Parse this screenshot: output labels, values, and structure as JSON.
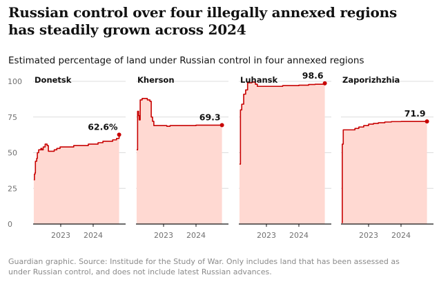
{
  "title": "Russian control over four illegally annexed regions has steadily grown across 2024",
  "subtitle": "Estimated percentage of land under Russian control in four annexed regions",
  "footnote": "Guardian graphic. Source: Institude for the Study of War. Only includes land that has been assessed as under Russian control, and does not include latest Russian advances.",
  "colors": {
    "line": "#c70000",
    "fill": "#ffd9d2",
    "gridline": "#dcdcdc",
    "axis": "#121212"
  },
  "chart_data": {
    "type": "area",
    "y_ticks": [
      "100",
      "75",
      "50",
      "25",
      "0"
    ],
    "ylim": [
      0,
      100
    ],
    "x_ticks": [
      "2023",
      "2024"
    ],
    "x_tick_values": [
      2023.0,
      2024.0
    ],
    "xlim": [
      2022.15,
      2025.0
    ],
    "grid": true,
    "panels": [
      {
        "name": "Donetsk",
        "end_label": "62.6%",
        "series": [
          [
            2022.17,
            31
          ],
          [
            2022.19,
            35
          ],
          [
            2022.21,
            36
          ],
          [
            2022.22,
            44
          ],
          [
            2022.26,
            46
          ],
          [
            2022.28,
            50
          ],
          [
            2022.32,
            52
          ],
          [
            2022.36,
            52
          ],
          [
            2022.39,
            53
          ],
          [
            2022.42,
            52
          ],
          [
            2022.46,
            54
          ],
          [
            2022.52,
            56
          ],
          [
            2022.58,
            55
          ],
          [
            2022.62,
            51
          ],
          [
            2022.72,
            51
          ],
          [
            2022.8,
            52
          ],
          [
            2022.88,
            53
          ],
          [
            2022.98,
            54
          ],
          [
            2023.1,
            54
          ],
          [
            2023.25,
            54
          ],
          [
            2023.4,
            55
          ],
          [
            2023.55,
            55
          ],
          [
            2023.7,
            55
          ],
          [
            2023.85,
            56
          ],
          [
            2024.0,
            56
          ],
          [
            2024.15,
            57
          ],
          [
            2024.3,
            58
          ],
          [
            2024.45,
            58
          ],
          [
            2024.6,
            59
          ],
          [
            2024.72,
            60
          ],
          [
            2024.8,
            62.6
          ]
        ]
      },
      {
        "name": "Kherson",
        "end_label": "69.3",
        "series": [
          [
            2022.17,
            52
          ],
          [
            2022.2,
            79
          ],
          [
            2022.23,
            76
          ],
          [
            2022.25,
            73
          ],
          [
            2022.28,
            87
          ],
          [
            2022.34,
            88
          ],
          [
            2022.5,
            87
          ],
          [
            2022.58,
            86
          ],
          [
            2022.62,
            75
          ],
          [
            2022.66,
            72
          ],
          [
            2022.7,
            69
          ],
          [
            2022.85,
            69
          ],
          [
            2023.0,
            69
          ],
          [
            2023.1,
            68.5
          ],
          [
            2023.2,
            69
          ],
          [
            2023.4,
            69
          ],
          [
            2023.6,
            69
          ],
          [
            2023.8,
            69
          ],
          [
            2024.0,
            69.3
          ],
          [
            2024.4,
            69.3
          ],
          [
            2024.8,
            69.3
          ]
        ]
      },
      {
        "name": "Luhansk",
        "end_label": "98.6",
        "series": [
          [
            2022.17,
            42
          ],
          [
            2022.2,
            80
          ],
          [
            2022.24,
            84
          ],
          [
            2022.3,
            91
          ],
          [
            2022.36,
            94
          ],
          [
            2022.42,
            99
          ],
          [
            2022.55,
            99.5
          ],
          [
            2022.66,
            98
          ],
          [
            2022.72,
            96.5
          ],
          [
            2022.9,
            96.5
          ],
          [
            2023.1,
            96.5
          ],
          [
            2023.3,
            96.5
          ],
          [
            2023.5,
            97
          ],
          [
            2023.8,
            97
          ],
          [
            2024.0,
            97.3
          ],
          [
            2024.3,
            97.8
          ],
          [
            2024.5,
            98
          ],
          [
            2024.8,
            98.6
          ]
        ]
      },
      {
        "name": "Zaporizhzhia",
        "end_label": "71.9",
        "series": [
          [
            2022.17,
            1
          ],
          [
            2022.19,
            56
          ],
          [
            2022.22,
            66
          ],
          [
            2022.35,
            66
          ],
          [
            2022.5,
            66
          ],
          [
            2022.58,
            67
          ],
          [
            2022.7,
            68
          ],
          [
            2022.85,
            69
          ],
          [
            2023.0,
            70
          ],
          [
            2023.15,
            70.5
          ],
          [
            2023.3,
            71
          ],
          [
            2023.5,
            71.5
          ],
          [
            2023.7,
            71.8
          ],
          [
            2024.0,
            71.9
          ],
          [
            2024.4,
            71.9
          ],
          [
            2024.8,
            71.9
          ]
        ]
      }
    ]
  }
}
